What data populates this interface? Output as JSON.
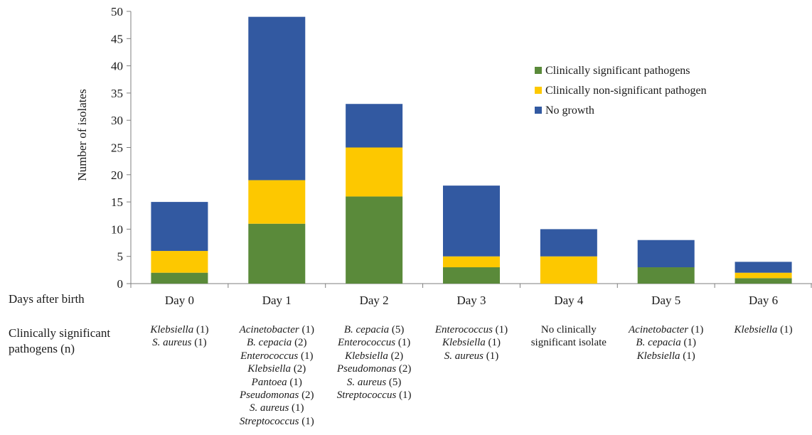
{
  "chart_data": {
    "type": "bar",
    "stacked": true,
    "ylabel": "Number of isolates",
    "ylim": [
      0,
      50
    ],
    "yticks": [
      0,
      5,
      10,
      15,
      20,
      25,
      30,
      35,
      40,
      45,
      50
    ],
    "grid": false,
    "legend_position": "top-right",
    "categories": [
      "Day 0",
      "Day 1",
      "Day 2",
      "Day 3",
      "Day 4",
      "Day 5",
      "Day 6"
    ],
    "series": [
      {
        "name": "Clinically significant pathogens",
        "color": "#5a8a3a",
        "values": [
          2,
          11,
          16,
          3,
          0,
          3,
          1
        ]
      },
      {
        "name": "Clinically non-significant pathogen",
        "color": "#fdc800",
        "values": [
          4,
          8,
          9,
          2,
          5,
          0,
          1
        ]
      },
      {
        "name": "No growth",
        "color": "#3259a1",
        "values": [
          9,
          30,
          8,
          13,
          5,
          5,
          2
        ]
      }
    ]
  },
  "table": {
    "days_label": "Days after birth",
    "pathogens_label_line1": "Clinically significant",
    "pathogens_label_line2": "pathogens (n)",
    "pathogens": [
      [
        {
          "name": "Klebsiella",
          "count": "(1)"
        },
        {
          "name": "S. aureus",
          "count": "(1)"
        }
      ],
      [
        {
          "name": "Acinetobacter",
          "count": "(1)"
        },
        {
          "name": "B. cepacia",
          "count": "(2)"
        },
        {
          "name": "Enterococcus",
          "count": "(1)"
        },
        {
          "name": "Klebsiella",
          "count": "(2)"
        },
        {
          "name": "Pantoea",
          "count": "(1)"
        },
        {
          "name": "Pseudomonas",
          "count": "(2)"
        },
        {
          "name": "S. aureus",
          "count": "(1)"
        },
        {
          "name": "Streptococcus",
          "count": "(1)"
        }
      ],
      [
        {
          "name": "B. cepacia",
          "count": "(5)"
        },
        {
          "name": "Enterococcus",
          "count": "(1)"
        },
        {
          "name": "Klebsiella",
          "count": "(2)"
        },
        {
          "name": "Pseudomonas",
          "count": "(2)"
        },
        {
          "name": "S. aureus",
          "count": "(5)"
        },
        {
          "name": "Streptococcus",
          "count": "(1)"
        }
      ],
      [
        {
          "name": "Enterococcus",
          "count": "(1)"
        },
        {
          "name": "Klebsiella",
          "count": "(1)"
        },
        {
          "name": "S. aureus",
          "count": "(1)"
        }
      ],
      [
        {
          "plain": "No clinically"
        },
        {
          "plain": "significant isolate"
        }
      ],
      [
        {
          "name": "Acinetobacter",
          "count": "(1)"
        },
        {
          "name": "B. cepacia",
          "count": "(1)"
        },
        {
          "name": "Klebsiella",
          "count": "(1)"
        }
      ],
      [
        {
          "name": "Klebsiella",
          "count": "(1)"
        }
      ]
    ]
  }
}
